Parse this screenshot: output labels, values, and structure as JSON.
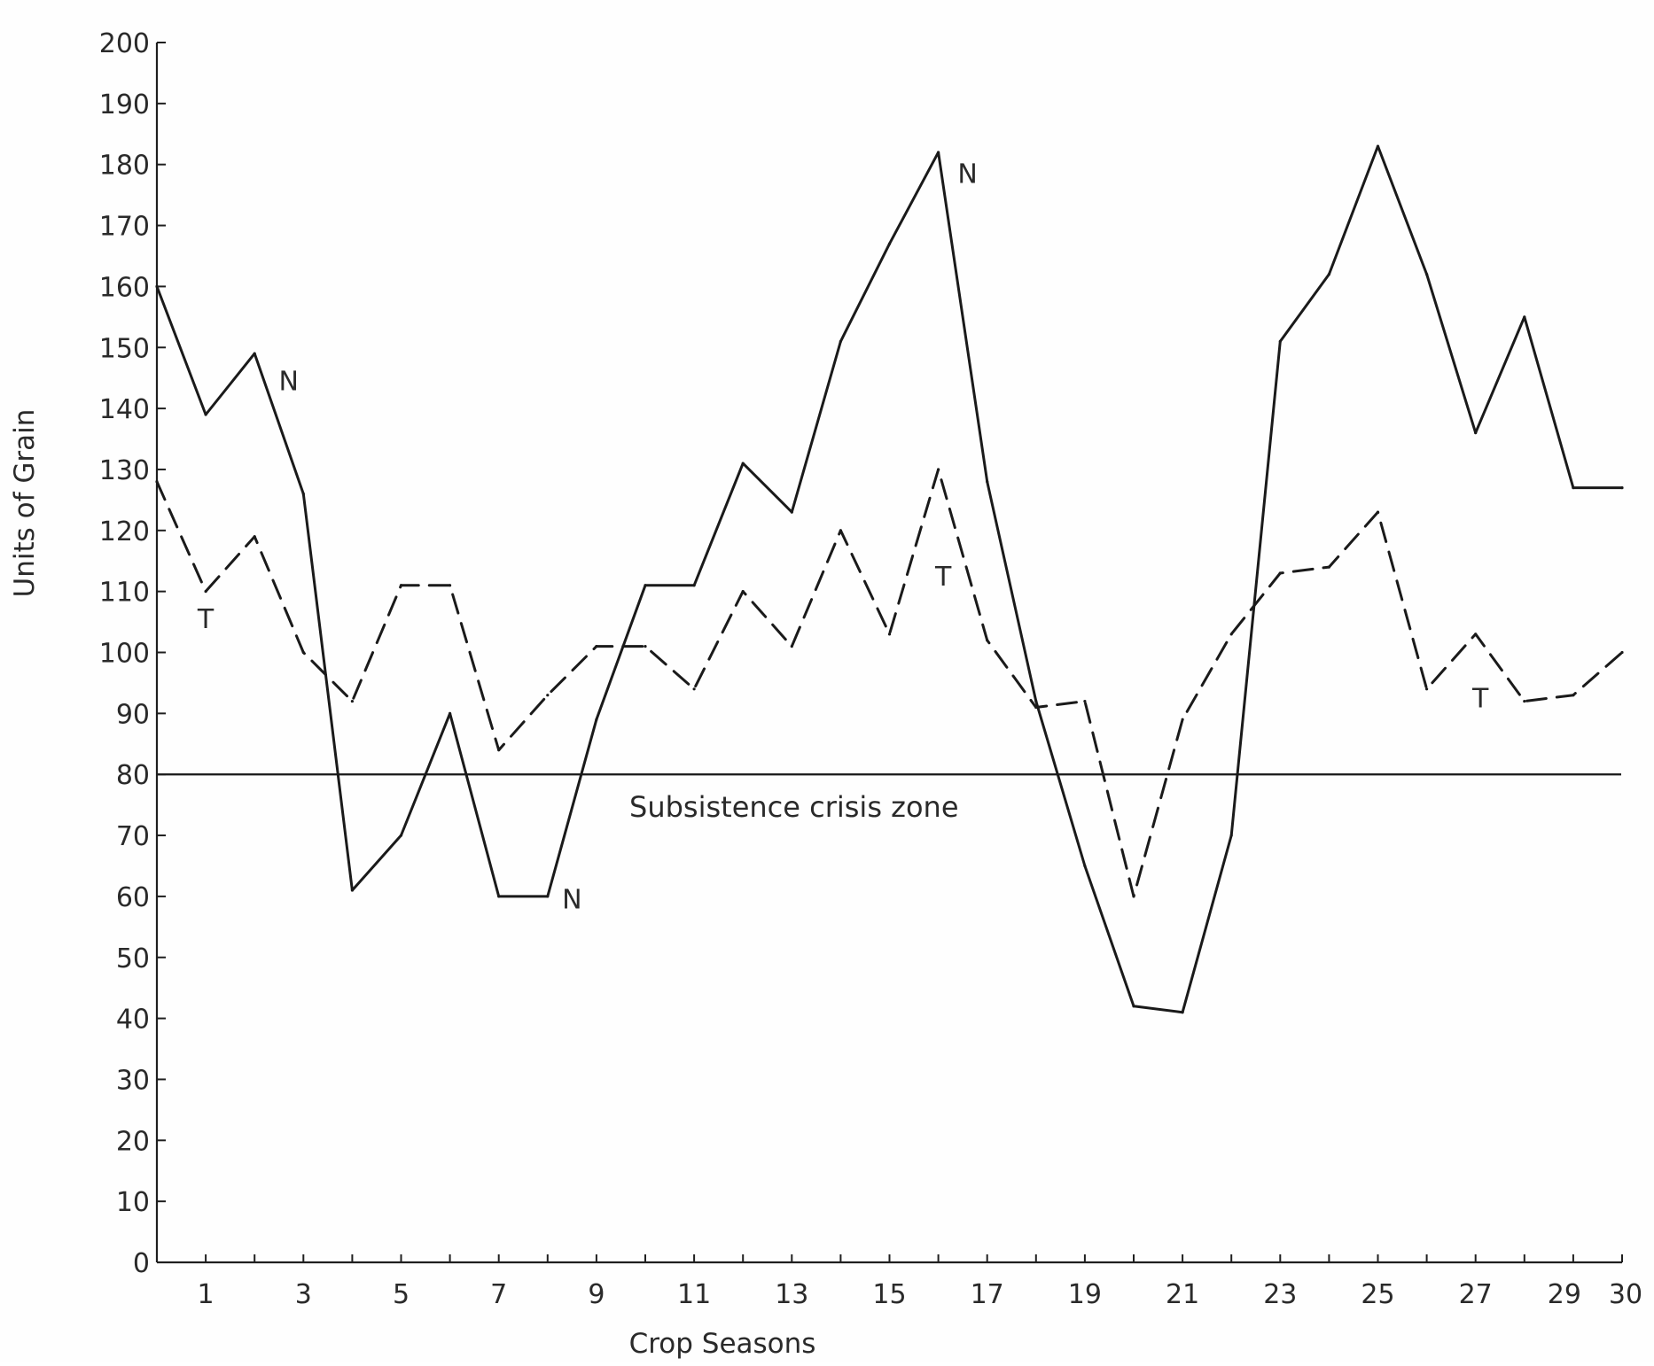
{
  "chart_data": {
    "type": "line",
    "title": "",
    "xlabel": "Crop Seasons",
    "ylabel": "Units of Grain",
    "xlim": [
      0,
      30
    ],
    "ylim": [
      0,
      200
    ],
    "x_ticks": [
      1,
      3,
      5,
      7,
      9,
      11,
      13,
      15,
      17,
      19,
      21,
      23,
      25,
      27,
      29,
      30
    ],
    "y_ticks": [
      0,
      10,
      20,
      30,
      40,
      50,
      60,
      70,
      80,
      90,
      100,
      110,
      120,
      130,
      140,
      150,
      160,
      170,
      180,
      190,
      200
    ],
    "grid": false,
    "x": [
      0,
      1,
      2,
      3,
      4,
      5,
      6,
      7,
      8,
      9,
      10,
      11,
      12,
      13,
      14,
      15,
      16,
      17,
      18,
      19,
      20,
      21,
      22,
      23,
      24,
      25,
      26,
      27,
      28,
      29,
      30
    ],
    "series": [
      {
        "name": "N",
        "style": "solid",
        "color": "#1a1a1a",
        "values": [
          160,
          139,
          149,
          126,
          61,
          70,
          90,
          60,
          60,
          89,
          111,
          111,
          131,
          123,
          151,
          167,
          182,
          128,
          92,
          65,
          42,
          41,
          70,
          151,
          162,
          183,
          162,
          136,
          155,
          127,
          127
        ]
      },
      {
        "name": "T",
        "style": "dashed",
        "color": "#1a1a1a",
        "values": [
          128,
          110,
          119,
          100,
          92,
          111,
          111,
          84,
          93,
          101,
          101,
          94,
          110,
          101,
          120,
          103,
          130,
          102,
          91,
          92,
          60,
          89,
          103,
          113,
          114,
          123,
          94,
          103,
          92,
          93,
          100
        ]
      }
    ],
    "reference_lines": [
      {
        "y": 80,
        "label": "Subsistence crisis zone"
      }
    ],
    "annotations": [
      {
        "text": "N",
        "x": 2.7,
        "y": 143
      },
      {
        "text": "N",
        "x": 16.6,
        "y": 177
      },
      {
        "text": "N",
        "x": 8.5,
        "y": 58
      },
      {
        "text": "T",
        "x": 1.0,
        "y": 104
      },
      {
        "text": "T",
        "x": 16.1,
        "y": 111
      },
      {
        "text": "T",
        "x": 27.1,
        "y": 91
      }
    ]
  }
}
